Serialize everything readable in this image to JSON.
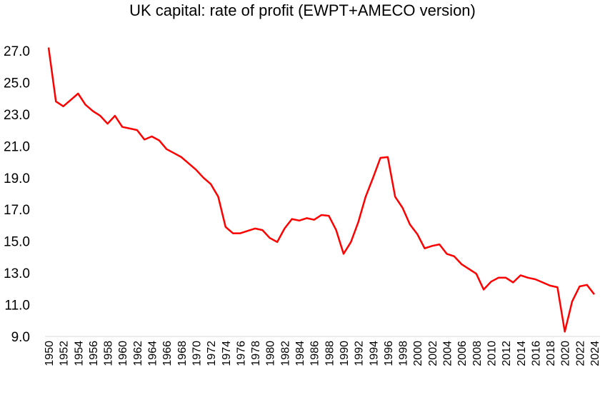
{
  "chart_data": {
    "type": "line",
    "title": "UK capital: rate of profit (EWPT+AMECO version)",
    "xlabel": "",
    "ylabel": "",
    "ylim": [
      9.0,
      27.0
    ],
    "yticks": [
      "27.0",
      "25.0",
      "23.0",
      "21.0",
      "19.0",
      "17.0",
      "15.0",
      "13.0",
      "11.0",
      "9.0"
    ],
    "xticks": [
      "1950",
      "1952",
      "1954",
      "1956",
      "1958",
      "1960",
      "1962",
      "1964",
      "1966",
      "1968",
      "1970",
      "1972",
      "1974",
      "1976",
      "1978",
      "1980",
      "1982",
      "1984",
      "1986",
      "1988",
      "1990",
      "1992",
      "1994",
      "1996",
      "1998",
      "2000",
      "2002",
      "2004",
      "2006",
      "2008",
      "2010",
      "2012",
      "2014",
      "2016",
      "2018",
      "2020",
      "2022",
      "2024"
    ],
    "grid": false,
    "legend": "none",
    "color": "#ff0000",
    "x": [
      1950,
      1951,
      1952,
      1953,
      1954,
      1955,
      1956,
      1957,
      1958,
      1959,
      1960,
      1961,
      1962,
      1963,
      1964,
      1965,
      1966,
      1967,
      1968,
      1969,
      1970,
      1971,
      1972,
      1973,
      1974,
      1975,
      1976,
      1977,
      1978,
      1979,
      1980,
      1981,
      1982,
      1983,
      1984,
      1985,
      1986,
      1987,
      1988,
      1989,
      1990,
      1991,
      1992,
      1993,
      1994,
      1995,
      1996,
      1997,
      1998,
      1999,
      2000,
      2001,
      2002,
      2003,
      2004,
      2005,
      2006,
      2007,
      2008,
      2009,
      2010,
      2011,
      2012,
      2013,
      2014,
      2015,
      2016,
      2017,
      2018,
      2019,
      2020,
      2021,
      2022,
      2023,
      2024
    ],
    "values": [
      27.2,
      23.8,
      23.5,
      23.9,
      24.3,
      23.6,
      23.2,
      22.9,
      22.4,
      22.9,
      22.2,
      22.1,
      22.0,
      21.4,
      21.6,
      21.35,
      20.8,
      20.55,
      20.3,
      19.9,
      19.5,
      19.0,
      18.6,
      17.8,
      15.9,
      15.5,
      15.5,
      15.65,
      15.8,
      15.7,
      15.2,
      14.95,
      15.8,
      16.4,
      16.3,
      16.45,
      16.35,
      16.65,
      16.6,
      15.7,
      14.2,
      14.95,
      16.2,
      17.8,
      19.0,
      20.25,
      20.3,
      17.8,
      17.1,
      16.05,
      15.45,
      14.55,
      14.7,
      14.8,
      14.2,
      14.05,
      13.55,
      13.25,
      12.95,
      11.95,
      12.45,
      12.7,
      12.7,
      12.4,
      12.85,
      12.7,
      12.6,
      12.4,
      12.2,
      12.1,
      9.3,
      11.2,
      12.15,
      12.25,
      11.65
    ]
  }
}
